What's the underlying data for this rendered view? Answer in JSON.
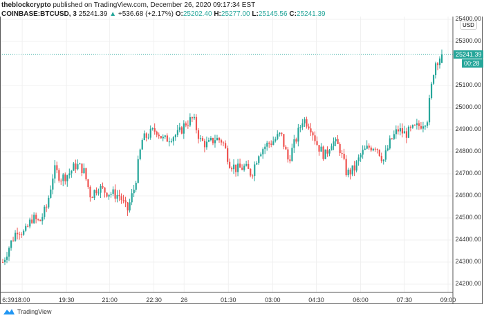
{
  "header": {
    "author": "theblockcrypto",
    "published": "published on TradingView.com, December 26, 2020 09:17:34 EST",
    "symbol": "COINBASE:BTCUSD, 3",
    "last": "25241.39",
    "change": "+536.68 (+2.17%)",
    "o_label": "O:",
    "o": "25202.40",
    "h_label": "H:",
    "h": "25277.00",
    "l_label": "L:",
    "l": "25145.56",
    "c_label": "C:",
    "c": "25241.39"
  },
  "price_axis": {
    "currency": "USD",
    "labels": [
      "25400.00",
      "25300.00",
      "25100.00",
      "25000.00",
      "24900.00",
      "24800.00",
      "24700.00",
      "24600.00",
      "24500.00",
      "24400.00",
      "24300.00",
      "24200.00"
    ],
    "last_price_tag": "25241.39",
    "countdown_tag": "00:28"
  },
  "time_axis": {
    "labels": [
      "6:39",
      "18:00",
      "19:30",
      "21:00",
      "22:30",
      "26",
      "01:30",
      "03:00",
      "04:30",
      "06:00",
      "07:30",
      "09:00"
    ]
  },
  "footer": {
    "brand": "TradingView"
  },
  "colors": {
    "up": "#26a69a",
    "down": "#ef5350"
  },
  "chart_data": {
    "type": "candlestick",
    "symbol": "BTCUSD",
    "interval": "3",
    "ylim": [
      24150,
      25420
    ],
    "keypoint_closes": [
      24300,
      24380,
      24450,
      24430,
      24500,
      24480,
      24550,
      24720,
      24680,
      24700,
      24740,
      24720,
      24600,
      24640,
      24620,
      24610,
      24600,
      24530,
      24640,
      24850,
      24880,
      24900,
      24850,
      24870,
      24880,
      24930,
      24950,
      24850,
      24830,
      24860,
      24850,
      24750,
      24720,
      24730,
      24700,
      24800,
      24830,
      24850,
      24880,
      24760,
      24850,
      24950,
      24920,
      24830,
      24780,
      24850,
      24820,
      24700,
      24720,
      24790,
      24820,
      24830,
      24760,
      24850,
      24900,
      24880,
      24900,
      24920,
      24950,
      25200,
      25241.39
    ]
  }
}
